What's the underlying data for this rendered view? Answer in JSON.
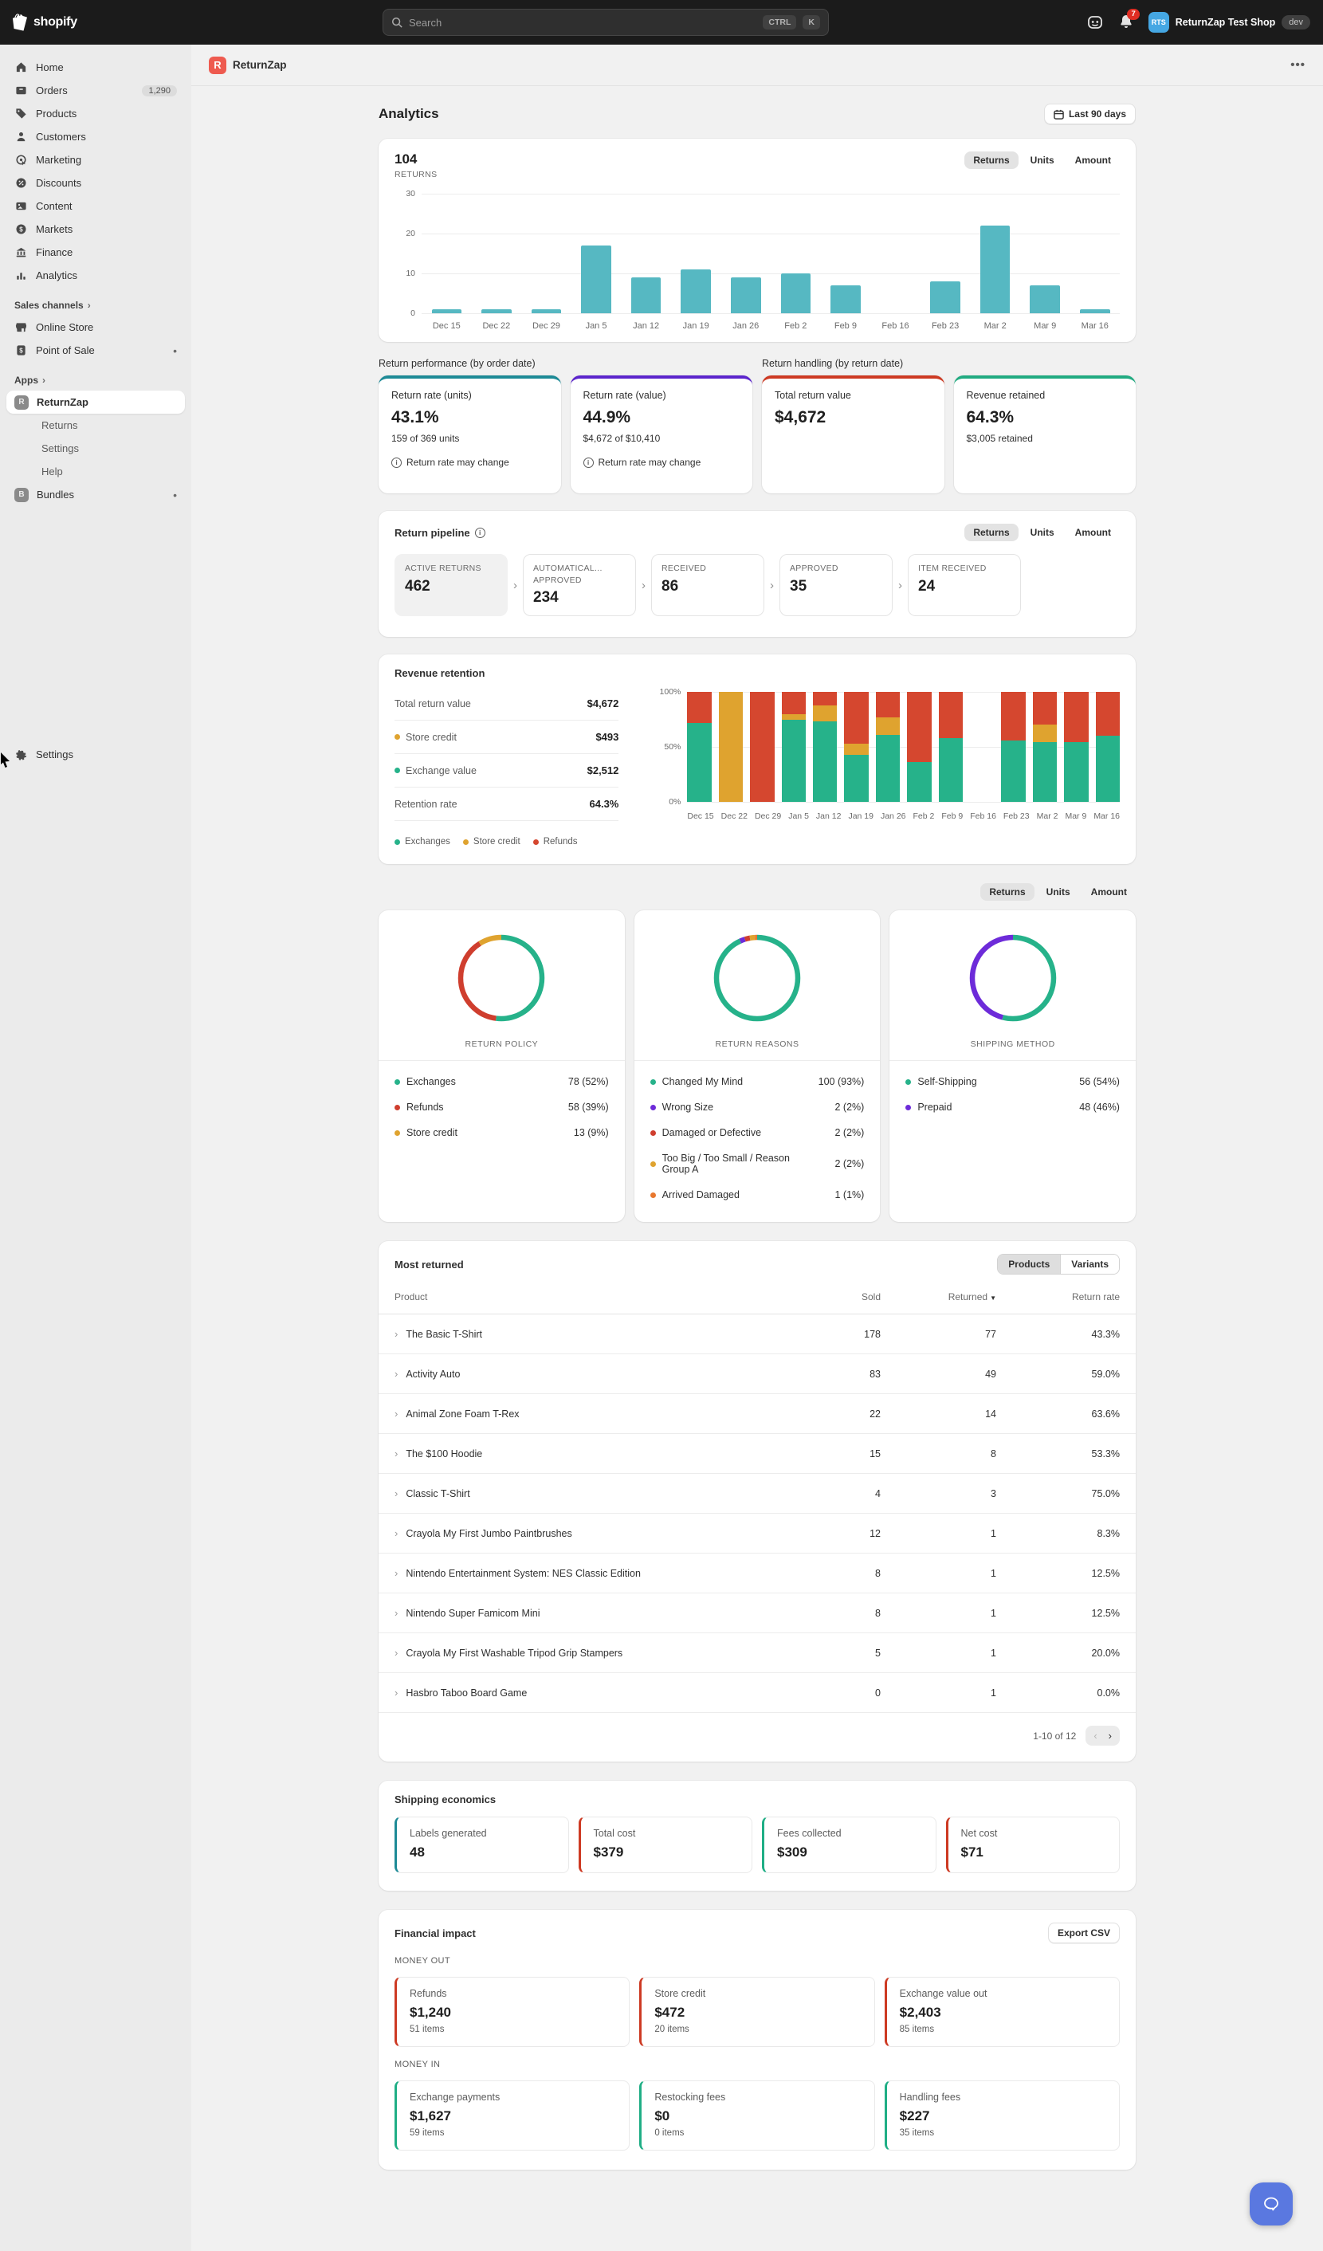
{
  "topbar": {
    "brand": "shopify",
    "search": {
      "placeholder": "Search",
      "keys": [
        "CTRL",
        "K"
      ]
    },
    "notification_count": "7",
    "shop": {
      "initials": "RTS",
      "name": "ReturnZap Test Shop",
      "env": "dev"
    }
  },
  "sidebar": {
    "main_items": [
      {
        "label": "Home",
        "icon": "home"
      },
      {
        "label": "Orders",
        "icon": "orders",
        "badge": "1,290"
      },
      {
        "label": "Products",
        "icon": "products"
      },
      {
        "label": "Customers",
        "icon": "customers"
      },
      {
        "label": "Marketing",
        "icon": "marketing"
      },
      {
        "label": "Discounts",
        "icon": "discounts"
      },
      {
        "label": "Content",
        "icon": "content"
      },
      {
        "label": "Markets",
        "icon": "markets"
      },
      {
        "label": "Finance",
        "icon": "finance"
      },
      {
        "label": "Analytics",
        "icon": "analytics"
      }
    ],
    "sales_channels_label": "Sales channels",
    "sales_channels": [
      {
        "label": "Online Store",
        "icon": "store"
      },
      {
        "label": "Point of Sale",
        "icon": "pos",
        "dot": true
      }
    ],
    "apps_label": "Apps",
    "apps": [
      {
        "label": "ReturnZap",
        "appletter": "R",
        "selected": true
      },
      {
        "label": "Returns",
        "sub": true
      },
      {
        "label": "Settings",
        "sub": true
      },
      {
        "label": "Help",
        "sub": true
      },
      {
        "label": "Bundles",
        "appletter": "B",
        "dot": true
      }
    ],
    "settings_label": "Settings"
  },
  "app_header": {
    "title": "ReturnZap"
  },
  "page": {
    "title": "Analytics",
    "date_range_label": "Last 90 days"
  },
  "view_tabs": [
    "Returns",
    "Units",
    "Amount"
  ],
  "returns_summary": {
    "value": "104",
    "label": "RETURNS"
  },
  "chart_data": [
    {
      "id": "returns_by_week",
      "type": "bar",
      "title": "Returns",
      "categories": [
        "Dec 15",
        "Dec 22",
        "Dec 29",
        "Jan 5",
        "Jan 12",
        "Jan 19",
        "Jan 26",
        "Feb 2",
        "Feb 9",
        "Feb 16",
        "Feb 23",
        "Mar 2",
        "Mar 9",
        "Mar 16"
      ],
      "values": [
        1,
        1,
        1,
        17,
        9,
        11,
        9,
        10,
        7,
        0,
        8,
        22,
        7,
        1
      ],
      "ylim": [
        0,
        30
      ],
      "yticks": [
        0,
        10,
        20,
        30
      ],
      "bar_color": "#56b8c2"
    },
    {
      "id": "revenue_retention",
      "type": "stacked_bar_percent",
      "categories": [
        "Dec 15",
        "Dec 22",
        "Dec 29",
        "Jan 5",
        "Jan 12",
        "Jan 19",
        "Jan 26",
        "Feb 2",
        "Feb 9",
        "Feb 16",
        "Feb 23",
        "Mar 2",
        "Mar 9",
        "Mar 16"
      ],
      "series": [
        {
          "name": "Exchanges",
          "color": "#26b28a",
          "values": [
            72,
            0,
            0,
            75,
            73,
            43,
            61,
            36,
            58,
            0,
            56,
            54,
            54,
            60
          ]
        },
        {
          "name": "Store credit",
          "color": "#dfa32f",
          "values": [
            0,
            100,
            0,
            5,
            15,
            10,
            16,
            0,
            0,
            0,
            0,
            16,
            0,
            0
          ]
        },
        {
          "name": "Refunds",
          "color": "#d5472f",
          "values": [
            28,
            0,
            100,
            20,
            12,
            47,
            23,
            64,
            42,
            0,
            44,
            30,
            46,
            40
          ]
        }
      ],
      "yticks_pct": [
        "0%",
        "50%",
        "100%"
      ]
    },
    {
      "id": "return_policy",
      "type": "donut",
      "label": "RETURN POLICY",
      "segments": [
        {
          "name": "Exchanges",
          "count": 78,
          "pct": 52,
          "color": "#26b28a"
        },
        {
          "name": "Refunds",
          "count": 58,
          "pct": 39,
          "color": "#cf3e2e"
        },
        {
          "name": "Store credit",
          "count": 13,
          "pct": 9,
          "color": "#dfa32f"
        }
      ]
    },
    {
      "id": "return_reasons",
      "type": "donut",
      "label": "RETURN REASONS",
      "segments": [
        {
          "name": "Changed My Mind",
          "count": 100,
          "pct": 93,
          "color": "#26b28a"
        },
        {
          "name": "Wrong Size",
          "count": 2,
          "pct": 2,
          "color": "#6d2bd9"
        },
        {
          "name": "Damaged or Defective",
          "count": 2,
          "pct": 2,
          "color": "#cf3e2e"
        },
        {
          "name": "Too Big / Too Small / Reason Group A",
          "count": 2,
          "pct": 2,
          "color": "#dfa32f"
        },
        {
          "name": "Arrived Damaged",
          "count": 1,
          "pct": 1,
          "color": "#e8772e"
        }
      ]
    },
    {
      "id": "shipping_method",
      "type": "donut",
      "label": "SHIPPING METHOD",
      "segments": [
        {
          "name": "Self-Shipping",
          "count": 56,
          "pct": 54,
          "color": "#26b28a"
        },
        {
          "name": "Prepaid",
          "count": 48,
          "pct": 46,
          "color": "#6d2bd9"
        }
      ]
    }
  ],
  "metric_sections": {
    "left_label": "Return performance (by order date)",
    "right_label": "Return handling (by return date)",
    "cards": [
      {
        "title": "Return rate (units)",
        "value": "43.1%",
        "sub": "159 of 369 units",
        "note": "Return rate may change",
        "accent": "#1d8a96"
      },
      {
        "title": "Return rate (value)",
        "value": "44.9%",
        "sub": "$4,672 of $10,410",
        "note": "Return rate may change",
        "accent": "#5c25cc"
      },
      {
        "title": "Total return value",
        "value": "$4,672",
        "sub": "",
        "note": "",
        "accent": "#cd3a23"
      },
      {
        "title": "Revenue retained",
        "value": "64.3%",
        "sub": "$3,005 retained",
        "note": "",
        "accent": "#21ab81"
      }
    ]
  },
  "pipeline": {
    "title": "Return pipeline",
    "stages": [
      {
        "label": "ACTIVE RETURNS",
        "value": "462",
        "selected": true
      },
      {
        "label": "AUTOMATICAL... APPROVED",
        "value": "234"
      },
      {
        "label": "RECEIVED",
        "value": "86"
      },
      {
        "label": "APPROVED",
        "value": "35"
      },
      {
        "label": "ITEM RECEIVED",
        "value": "24"
      }
    ]
  },
  "retention": {
    "title": "Revenue retention",
    "stats": [
      {
        "label": "Total return value",
        "value": "$4,672",
        "dot": ""
      },
      {
        "label": "Store credit",
        "value": "$493",
        "dot": "#dfa32f"
      },
      {
        "label": "Exchange value",
        "value": "$2,512",
        "dot": "#26b28a"
      },
      {
        "label": "Retention rate",
        "value": "64.3%",
        "dot": ""
      }
    ],
    "legend": [
      {
        "label": "Exchanges",
        "color": "#26b28a"
      },
      {
        "label": "Store credit",
        "color": "#dfa32f"
      },
      {
        "label": "Refunds",
        "color": "#d5472f"
      }
    ]
  },
  "most_returned": {
    "title": "Most returned",
    "tabs": [
      "Products",
      "Variants"
    ],
    "columns": [
      "Product",
      "Sold",
      "Returned",
      "Return rate"
    ],
    "rows": [
      [
        "The Basic T-Shirt",
        "178",
        "77",
        "43.3%"
      ],
      [
        "Activity Auto",
        "83",
        "49",
        "59.0%"
      ],
      [
        "Animal Zone Foam T-Rex",
        "22",
        "14",
        "63.6%"
      ],
      [
        "The $100 Hoodie",
        "15",
        "8",
        "53.3%"
      ],
      [
        "Classic T-Shirt",
        "4",
        "3",
        "75.0%"
      ],
      [
        "Crayola My First Jumbo Paintbrushes",
        "12",
        "1",
        "8.3%"
      ],
      [
        "Nintendo Entertainment System: NES Classic Edition",
        "8",
        "1",
        "12.5%"
      ],
      [
        "Nintendo Super Famicom Mini",
        "8",
        "1",
        "12.5%"
      ],
      [
        "Crayola My First Washable Tripod Grip Stampers",
        "5",
        "1",
        "20.0%"
      ],
      [
        "Hasbro Taboo Board Game",
        "0",
        "1",
        "0.0%"
      ]
    ],
    "pagination": "1-10 of 12"
  },
  "shipping_economics": {
    "title": "Shipping economics",
    "cards": [
      {
        "label": "Labels generated",
        "value": "48",
        "accent": "#1d8a96"
      },
      {
        "label": "Total cost",
        "value": "$379",
        "accent": "#cd3a23"
      },
      {
        "label": "Fees collected",
        "value": "$309",
        "accent": "#1fae85"
      },
      {
        "label": "Net cost",
        "value": "$71",
        "accent": "#cd3a23"
      }
    ]
  },
  "financial_impact": {
    "title": "Financial impact",
    "export_label": "Export CSV",
    "money_out_label": "MONEY OUT",
    "money_out_accent": "#cd3a23",
    "money_out": [
      {
        "label": "Refunds",
        "value": "$1,240",
        "items": "51 items"
      },
      {
        "label": "Store credit",
        "value": "$472",
        "items": "20 items"
      },
      {
        "label": "Exchange value out",
        "value": "$2,403",
        "items": "85 items"
      }
    ],
    "money_in_label": "MONEY IN",
    "money_in_accent": "#1fae85",
    "money_in": [
      {
        "label": "Exchange payments",
        "value": "$1,627",
        "items": "59 items"
      },
      {
        "label": "Restocking fees",
        "value": "$0",
        "items": "0 items"
      },
      {
        "label": "Handling fees",
        "value": "$227",
        "items": "35 items"
      }
    ]
  }
}
